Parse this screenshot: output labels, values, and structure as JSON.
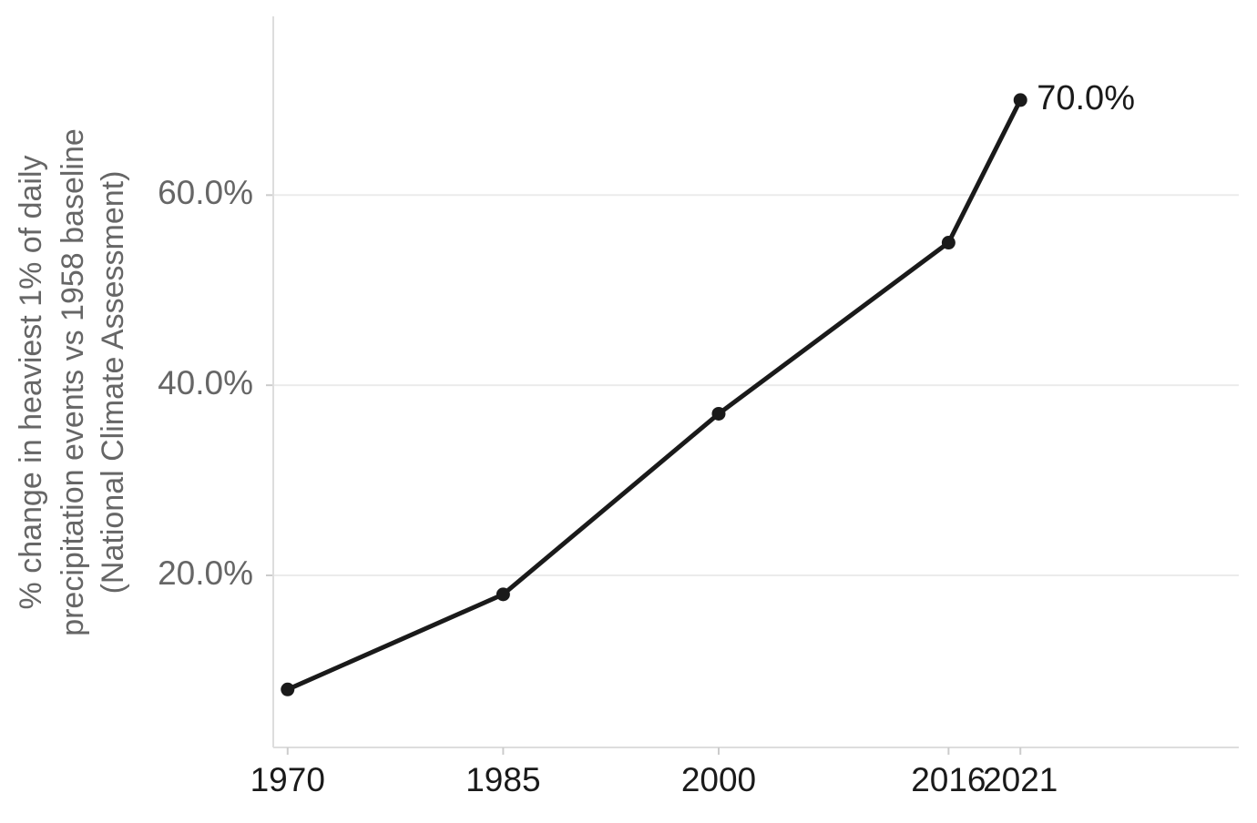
{
  "chart_data": {
    "type": "line",
    "y_label": [
      "% change in heaviest 1% of daily",
      "precipitation events vs 1958 baseline",
      "(National Climate Assessment)"
    ],
    "x": [
      1970,
      1985,
      2000,
      2016,
      2021
    ],
    "values": [
      8,
      18,
      37,
      55,
      70
    ],
    "value_labels": [
      null,
      null,
      null,
      null,
      "70.0%"
    ],
    "color": "#1a1a1a",
    "xlim": [
      1969,
      2036.2
    ],
    "xticks": [
      1970,
      1985,
      2000,
      2016,
      2021
    ],
    "ylim": [
      1.9,
      78.8
    ],
    "yticks": [
      {
        "value": 20,
        "label": "20.0%"
      },
      {
        "value": 40,
        "label": "40.0%"
      },
      {
        "value": 60,
        "label": "60.0%"
      }
    ],
    "grid": true
  }
}
